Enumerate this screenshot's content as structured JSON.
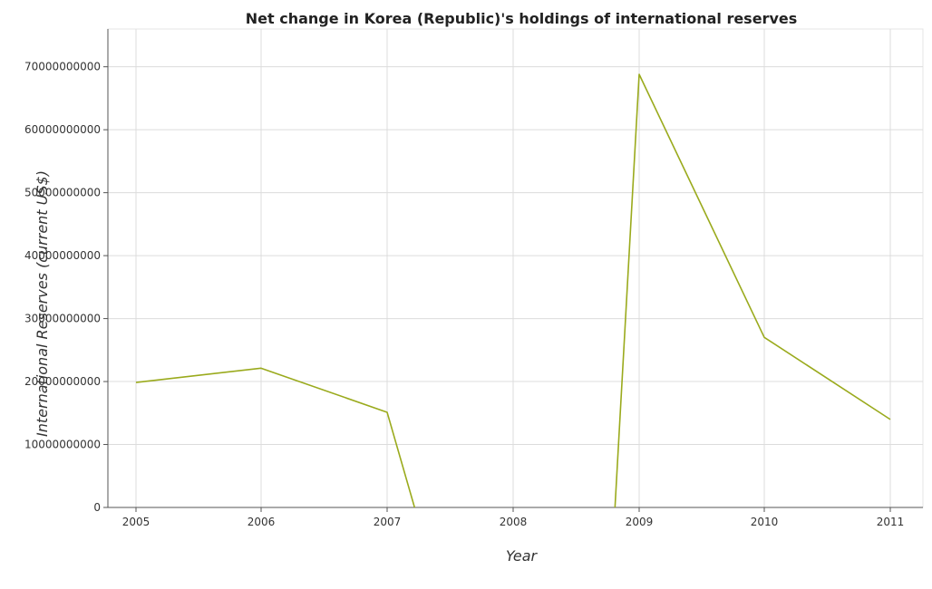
{
  "chart_data": {
    "type": "line",
    "title": "Net change in Korea (Republic)'s holdings of international reserves",
    "xlabel": "Year",
    "ylabel": "International Reserves (current US$)",
    "categories": [
      "2005",
      "2006",
      "2007",
      "2008",
      "2009",
      "2010",
      "2011"
    ],
    "series": [
      {
        "name": "",
        "values": [
          19860000000,
          22120000000,
          15120000000,
          null,
          68800000000,
          27020000000,
          13980000000
        ]
      }
    ],
    "yticks": [
      "0",
      "10000000000",
      "20000000000",
      "30000000000",
      "40000000000",
      "50000000000",
      "60000000000",
      "70000000000"
    ],
    "ylim": [
      0,
      76000000000
    ],
    "grid": true,
    "line_color": "#9aaa1c"
  }
}
